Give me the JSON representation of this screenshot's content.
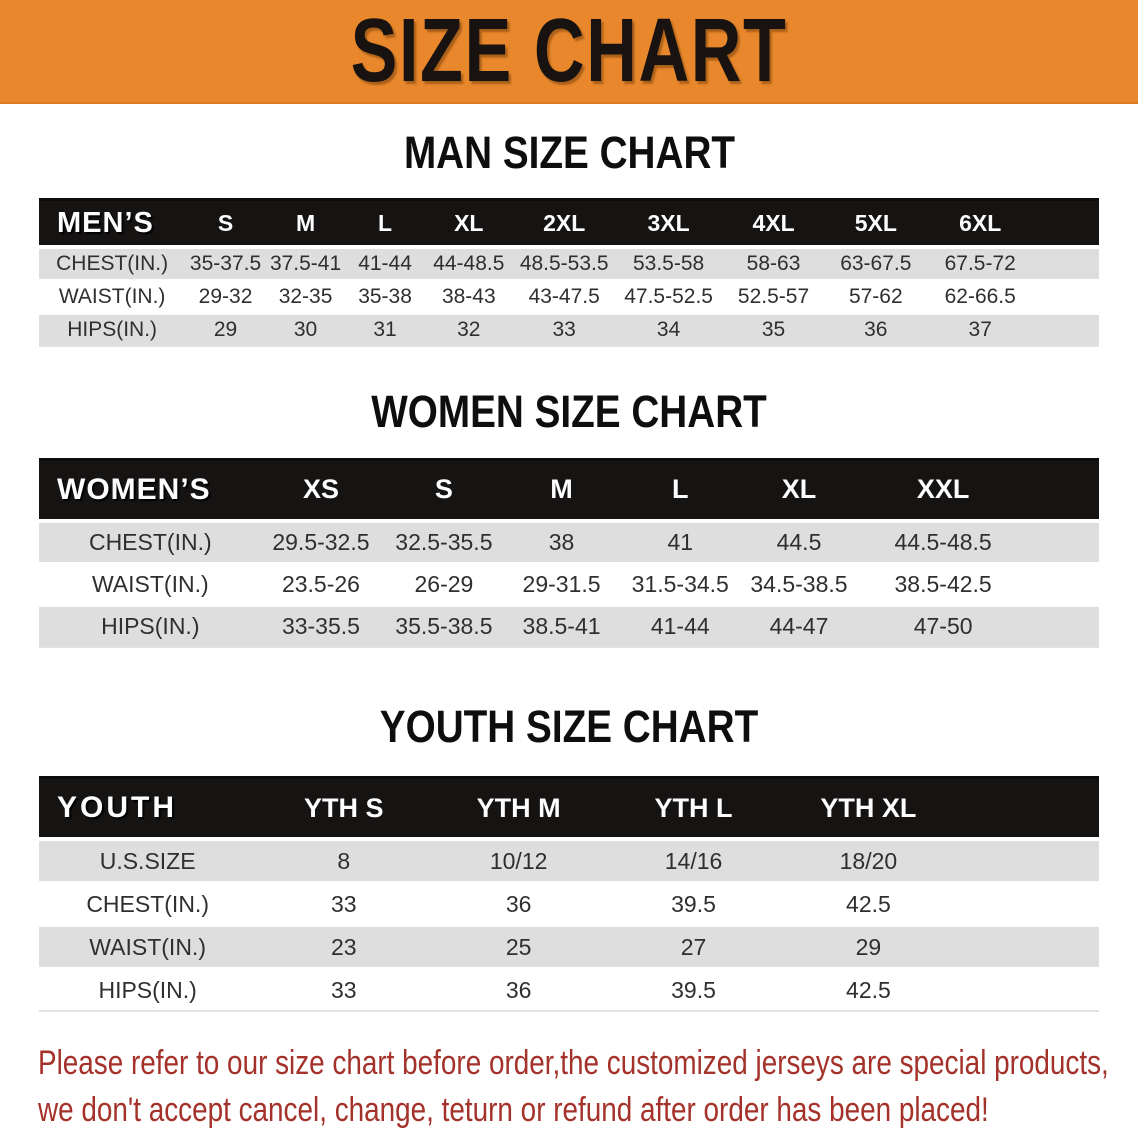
{
  "banner": {
    "title": "SIZE CHART",
    "bg_color": "#e8872b",
    "text_color": "#181310"
  },
  "sections": [
    {
      "id": "men",
      "heading": "MAN SIZE CHART",
      "table": {
        "label": "MEN’S",
        "columns": [
          "S",
          "M",
          "L",
          "XL",
          "2XL",
          "3XL",
          "4XL",
          "5XL",
          "6XL"
        ],
        "rows": [
          {
            "label": "CHEST(IN.)",
            "values": [
              "35-37.5",
              "37.5-41",
              "41-44",
              "44-48.5",
              "48.5-53.5",
              "53.5-58",
              "58-63",
              "63-67.5",
              "67.5-72"
            ]
          },
          {
            "label": "WAIST(IN.)",
            "values": [
              "29-32",
              "32-35",
              "35-38",
              "38-43",
              "43-47.5",
              "47.5-52.5",
              "52.5-57",
              "57-62",
              "62-66.5"
            ]
          },
          {
            "label": "HIPS(IN.)",
            "values": [
              "29",
              "30",
              "31",
              "32",
              "33",
              "34",
              "35",
              "36",
              "37"
            ]
          }
        ]
      }
    },
    {
      "id": "women",
      "heading": "WOMEN SIZE CHART",
      "table": {
        "label": "WOMEN’S",
        "columns": [
          "XS",
          "S",
          "M",
          "L",
          "XL",
          "XXL"
        ],
        "rows": [
          {
            "label": "CHEST(IN.)",
            "values": [
              "29.5-32.5",
              "32.5-35.5",
              "38",
              "41",
              "44.5",
              "44.5-48.5"
            ]
          },
          {
            "label": "WAIST(IN.)",
            "values": [
              "23.5-26",
              "26-29",
              "29-31.5",
              "31.5-34.5",
              "34.5-38.5",
              "38.5-42.5"
            ]
          },
          {
            "label": "HIPS(IN.)",
            "values": [
              "33-35.5",
              "35.5-38.5",
              "38.5-41",
              "41-44",
              "44-47",
              "47-50"
            ]
          }
        ]
      }
    },
    {
      "id": "youth",
      "heading": "YOUTH SIZE CHART",
      "table": {
        "label": "YOUTH",
        "columns": [
          "YTH S",
          "YTH M",
          "YTH L",
          "YTH XL"
        ],
        "rows": [
          {
            "label": "U.S.SIZE",
            "values": [
              "8",
              "10/12",
              "14/16",
              "18/20"
            ]
          },
          {
            "label": "CHEST(IN.)",
            "values": [
              "33",
              "36",
              "39.5",
              "42.5"
            ]
          },
          {
            "label": "WAIST(IN.)",
            "values": [
              "23",
              "25",
              "27",
              "29"
            ]
          },
          {
            "label": "HIPS(IN.)",
            "values": [
              "33",
              "36",
              "39.5",
              "42.5"
            ]
          }
        ]
      }
    }
  ],
  "table_colors": {
    "header_bg": "#161313",
    "header_text": "#fdfdfd",
    "stripe_gray": "#dedede",
    "value_text": "#2f2f2f"
  },
  "disclaimer": {
    "line1": "Please refer to our size chart before order,the customized jerseys are special products,",
    "line2": "we don't accept cancel, change, teturn or refund after order has been placed!",
    "color": "#a5322a"
  }
}
